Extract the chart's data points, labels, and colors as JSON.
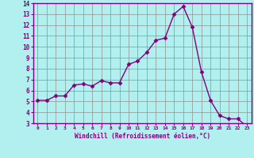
{
  "x": [
    0,
    1,
    2,
    3,
    4,
    5,
    6,
    7,
    8,
    9,
    10,
    11,
    12,
    13,
    14,
    15,
    16,
    17,
    18,
    19,
    20,
    21,
    22,
    23
  ],
  "y": [
    5.1,
    5.1,
    5.5,
    5.5,
    6.5,
    6.6,
    6.4,
    6.9,
    6.7,
    6.7,
    8.4,
    8.7,
    9.5,
    10.6,
    10.8,
    13.0,
    13.7,
    11.8,
    7.7,
    5.1,
    3.7,
    3.4,
    3.4,
    2.7
  ],
  "line_color": "#800080",
  "marker": "D",
  "marker_size": 2.5,
  "bg_color": "#b2f0f0",
  "grid_color": "#909090",
  "xlabel": "Windchill (Refroidissement éolien,°C)",
  "xlabel_color": "#800080",
  "tick_color": "#800080",
  "ylim": [
    3,
    14
  ],
  "xlim": [
    -0.5,
    23.5
  ],
  "yticks": [
    3,
    4,
    5,
    6,
    7,
    8,
    9,
    10,
    11,
    12,
    13,
    14
  ],
  "xticks": [
    0,
    1,
    2,
    3,
    4,
    5,
    6,
    7,
    8,
    9,
    10,
    11,
    12,
    13,
    14,
    15,
    16,
    17,
    18,
    19,
    20,
    21,
    22,
    23
  ],
  "xtick_labels": [
    "0",
    "1",
    "2",
    "3",
    "4",
    "5",
    "6",
    "7",
    "8",
    "9",
    "10",
    "11",
    "12",
    "13",
    "14",
    "15",
    "16",
    "17",
    "18",
    "19",
    "20",
    "21",
    "22",
    "23"
  ],
  "spine_color": "#800080",
  "linewidth": 1.0
}
